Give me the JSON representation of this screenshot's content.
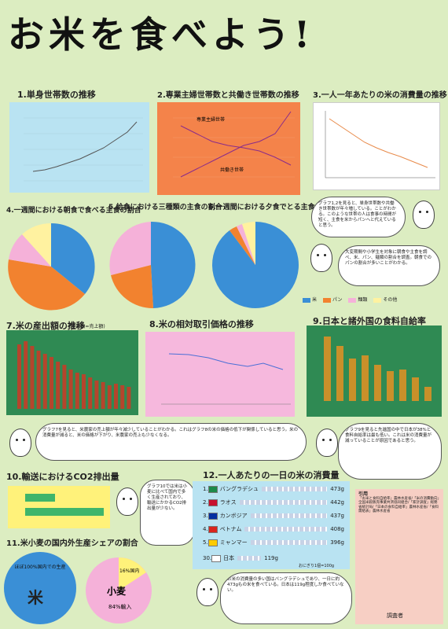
{
  "title": "お米を食べよう!",
  "sections": {
    "s1": "1.単身世帯数の推移",
    "s2": "2.専業主婦世帯数と共働き世帯数の推移",
    "s3": "3.一人一年あたりの米の消費量の推移",
    "s4": "4.一週間における朝食で食べる主食の割合",
    "s5": "5.給食における三種類の主食の割合",
    "s6": "6.一週間における夕食でとる主食の割合",
    "s7": "7.米の産出額の推移",
    "s7note": "(産出額=売上額)",
    "s8": "8.米の相対取引価格の推移",
    "s9": "9.日本と諸外国の食料自給率",
    "s10": "10.輸送におけるCO2排出量",
    "s11": "11.米小麦の国内外生産シェアの割合",
    "s12": "12.一人あたりの一日の米の消費量"
  },
  "chart2_labels": {
    "a": "専業主婦世帯",
    "b": "共働き世帯"
  },
  "legend": [
    {
      "label": "米",
      "color": "#3a8fd6"
    },
    {
      "label": "パン",
      "color": "#f2822f"
    },
    {
      "label": "麺類",
      "color": "#f5b1d9"
    },
    {
      "label": "その他",
      "color": "#fff2a0"
    }
  ],
  "bubbles": {
    "b1": "グラフ1,2を見ると、単身世帯数や共働き世帯数が年々増している。ことがわかる。このような世帯の人は食事の時間が短く、主食を米からパンへと代えていると思う。",
    "b2": "大変期間や小学生を対象に朝食や主食を調べ、米、パン、麺類の割合を調査。朝食でのパンの割合が多いことがわかる。",
    "b3": "グラフ7を見ると、米農家の売上額が年々減少していることがわかる。これはグラフ8の米の価格の低下が関係していると思う。米の消費量が減ると、米の価格が下がり、米農家の売上も少なくなる。",
    "b4": "グラフ9を見ると先進国の中で日本が38%と食料自給率は最も低い。これは米の消費量が減っていることが原因であると思う。",
    "b5": "グラフ10では米は小麦に比べて国内で多く生産されており、輸送にかかるCO2排出量が少ない。",
    "b6": "お米の消費量の多い国はバングラデシュであり、一日に約473gもの米を食べている。日本は119g程度しか食べていない。"
  },
  "chart12": {
    "rows": [
      {
        "rank": "1.",
        "country": "バングラデシュ",
        "value": "473g"
      },
      {
        "rank": "2.",
        "country": "ラオス",
        "value": "442g"
      },
      {
        "rank": "3.",
        "country": "カンボジア",
        "value": "437g"
      },
      {
        "rank": "4.",
        "country": "ベトナム",
        "value": "408g"
      },
      {
        "rank": "5.",
        "country": "ミャンマー",
        "value": "396g"
      },
      {
        "rank": "30.",
        "country": "日本",
        "value": "119g"
      }
    ],
    "unit_note": "おにぎり1個=100g"
  },
  "chart11": {
    "rice_label": "米",
    "rice_note": "ほぼ100%国内での生産",
    "wheat_label": "小麦",
    "wheat_import": "84%輸入",
    "wheat_domestic": "16%国内"
  },
  "refs_title": "引用",
  "refs": "「お米と食料自給率」農林水産省/「米の消費動向」全国米穀販売事業共済協同組合/「家計調査」総務省統計局/「日本の食料自給率」農林水産省/「食料需給表」農林水産省",
  "signature": "調査者"
}
